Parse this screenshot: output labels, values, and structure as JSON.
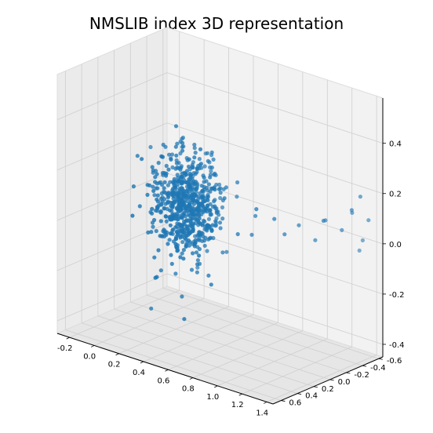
{
  "chart_data": {
    "type": "scatter",
    "subtype": "3d-scatter",
    "title": "NMSLIB index 3D representation",
    "xlabel": "",
    "ylabel": "",
    "zlabel": "",
    "xlim": [
      -0.3,
      1.45
    ],
    "ylim": [
      -0.65,
      0.7
    ],
    "zlim": [
      -0.45,
      0.58
    ],
    "x_ticks": [
      "-0.2",
      "0.0",
      "0.2",
      "0.4",
      "0.6",
      "0.8",
      "1.0",
      "1.2",
      "1.4"
    ],
    "y_ticks": [
      "-0.6",
      "-0.4",
      "-0.2",
      "0.0",
      "0.2",
      "0.4",
      "0.6"
    ],
    "z_ticks": [
      "-0.4",
      "-0.2",
      "0.0",
      "0.2",
      "0.4"
    ],
    "grid": true,
    "point_color": "#1f77b4",
    "pane_colors": [
      "#f2f2f2",
      "#ebebeb",
      "#e6e6e6"
    ],
    "series": [
      {
        "cluster": {
          "count": 700,
          "center": [
            0.28,
            0.0,
            0.05
          ],
          "spread": [
            0.12,
            0.12,
            0.1
          ]
        },
        "outliers": [
          {
            "x": 0.7,
            "y": -0.22,
            "z": 0.05
          },
          {
            "x": 0.75,
            "y": -0.1,
            "z": 0.0
          },
          {
            "x": 0.82,
            "y": -0.05,
            "z": 0.12
          },
          {
            "x": 0.9,
            "y": -0.15,
            "z": 0.08
          },
          {
            "x": 0.95,
            "y": -0.2,
            "z": 0.02
          },
          {
            "x": 1.0,
            "y": -0.3,
            "z": 0.05
          },
          {
            "x": 1.1,
            "y": -0.35,
            "z": 0.0
          },
          {
            "x": 1.15,
            "y": -0.4,
            "z": 0.08
          },
          {
            "x": 1.2,
            "y": -0.3,
            "z": 0.1
          },
          {
            "x": 1.25,
            "y": -0.45,
            "z": 0.05
          },
          {
            "x": 1.3,
            "y": -0.5,
            "z": 0.12
          },
          {
            "x": 1.35,
            "y": -0.42,
            "z": 0.15
          },
          {
            "x": 1.4,
            "y": -0.55,
            "z": 0.1
          },
          {
            "x": 1.38,
            "y": -0.48,
            "z": 0.2
          },
          {
            "x": 1.32,
            "y": -0.6,
            "z": 0.0
          },
          {
            "x": 1.28,
            "y": -0.62,
            "z": -0.05
          },
          {
            "x": 0.0,
            "y": 0.0,
            "z": -0.4
          },
          {
            "x": 0.4,
            "y": 0.2,
            "z": -0.35
          }
        ]
      }
    ]
  }
}
